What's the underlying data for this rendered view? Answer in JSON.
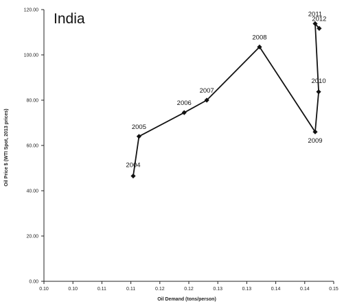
{
  "chart_data": {
    "type": "line",
    "title": "India",
    "xlabel": "Oil Demand (tons/person)",
    "ylabel": "Oil Price $ (WTI Spot, 2013 prices)",
    "xlim": [
      0.1,
      0.15
    ],
    "ylim": [
      0,
      120
    ],
    "x_ticks": [
      0.1,
      0.105,
      0.11,
      0.115,
      0.12,
      0.125,
      0.13,
      0.135,
      0.14,
      0.145,
      0.15
    ],
    "x_tick_labels": [
      "0.10",
      "0.10",
      "0.11",
      "0.11",
      "0.12",
      "0.12",
      "0.13",
      "0.13",
      "0.14",
      "0.14",
      "0.15"
    ],
    "y_ticks": [
      0,
      20,
      40,
      60,
      80,
      100,
      120
    ],
    "y_tick_labels": [
      "0.00",
      "20.00",
      "40.00",
      "60.00",
      "80.00",
      "100.00",
      "120.00"
    ],
    "grid": false,
    "legend": false,
    "line_color": "#111111",
    "marker": "diamond",
    "series": [
      {
        "points": [
          {
            "label": "2004",
            "x": 0.1154,
            "y": 46.5
          },
          {
            "label": "2005",
            "x": 0.1164,
            "y": 64.0
          },
          {
            "label": "2006",
            "x": 0.1242,
            "y": 74.5
          },
          {
            "label": "2007",
            "x": 0.1281,
            "y": 80.0
          },
          {
            "label": "2008",
            "x": 0.1372,
            "y": 103.5
          },
          {
            "label": "2009",
            "x": 0.1468,
            "y": 66.0
          },
          {
            "label": "2010",
            "x": 0.1474,
            "y": 83.7
          },
          {
            "label": "2011",
            "x": 0.1468,
            "y": 113.8
          },
          {
            "label": "2012",
            "x": 0.1475,
            "y": 111.7
          }
        ]
      }
    ]
  }
}
